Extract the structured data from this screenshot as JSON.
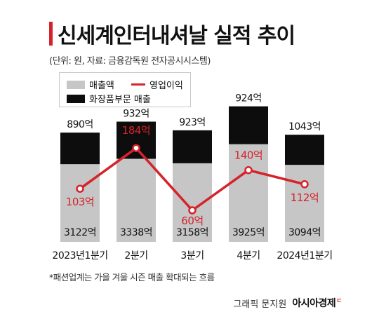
{
  "header": {
    "title": "신세계인터내셔날 실적 추이",
    "subtitle": "(단위: 원, 자료: 금융감독원 전자공시시스템)"
  },
  "legend": {
    "revenue": "매출액",
    "operating_profit": "영업이익",
    "cosmetics": "화장품부문 매출"
  },
  "chart_data": {
    "type": "bar",
    "categories": [
      "2023년1분기",
      "2분기",
      "3분기",
      "4분기",
      "2024년1분기"
    ],
    "series": [
      {
        "name": "매출액",
        "values": [
          3122,
          3338,
          3158,
          3925,
          3094
        ],
        "labels": [
          "3122억",
          "3338억",
          "3158억",
          "3925억",
          "3094억"
        ]
      },
      {
        "name": "화장품부문 매출",
        "values": [
          890,
          932,
          923,
          924,
          1043
        ],
        "labels": [
          "890억",
          "932억",
          "923억",
          "924억",
          "1043억"
        ]
      },
      {
        "name": "영업이익",
        "type": "line",
        "values": [
          103,
          184,
          60,
          140,
          112
        ],
        "labels": [
          "103억",
          "184억",
          "60억",
          "140억",
          "112억"
        ]
      }
    ],
    "colors": {
      "revenue": "#c6c6c6",
      "cosmetics": "#0d0d0d",
      "operating_profit": "#d6222a"
    }
  },
  "footnote": "*패션업계는 가을 겨울 시즌 매출 확대되는 흐름",
  "credit": {
    "text": "그래픽 문지원",
    "brand": "아시아경제",
    "brand_mark": "ㄷ"
  }
}
